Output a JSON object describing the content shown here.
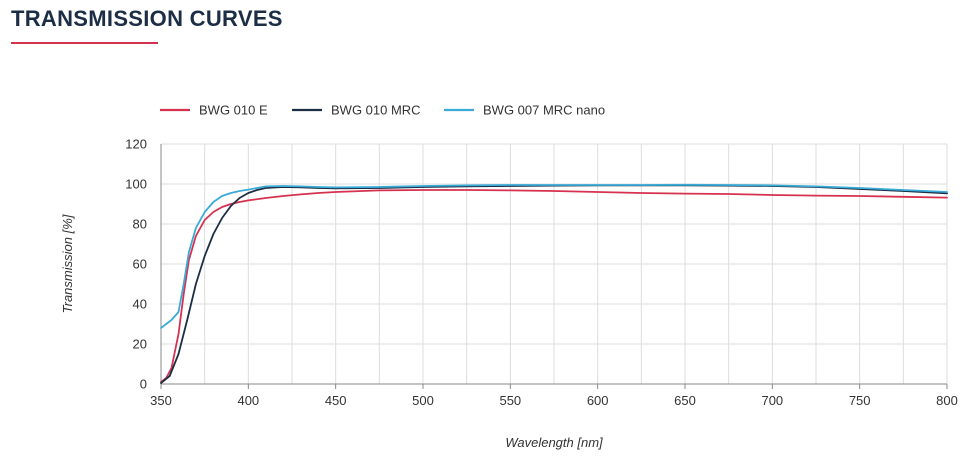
{
  "header": {
    "title": "TRANSMISSION CURVES"
  },
  "colors": {
    "title": "#1c2e45",
    "underline": "#d6324f",
    "grid": "#dddddd",
    "axis": "#888888"
  },
  "chart_data": {
    "type": "line",
    "title": "",
    "xlabel": "Wavelength [nm]",
    "ylabel": "Transmission [%]",
    "xlim": [
      350,
      800
    ],
    "ylim": [
      0,
      120
    ],
    "x_ticks": [
      350,
      400,
      450,
      500,
      550,
      600,
      650,
      700,
      750,
      800
    ],
    "y_ticks": [
      0,
      20,
      40,
      60,
      80,
      100,
      120
    ],
    "x_minor_step": 25,
    "grid": true,
    "legend_position": "top-left",
    "series": [
      {
        "name": "BWG 010 E",
        "color": "#d6324f",
        "points": [
          [
            350,
            1
          ],
          [
            353,
            3
          ],
          [
            356,
            8
          ],
          [
            360,
            25
          ],
          [
            363,
            45
          ],
          [
            366,
            62
          ],
          [
            370,
            74
          ],
          [
            375,
            82
          ],
          [
            380,
            86
          ],
          [
            385,
            88.5
          ],
          [
            390,
            90
          ],
          [
            395,
            91
          ],
          [
            400,
            91.8
          ],
          [
            410,
            93
          ],
          [
            420,
            94
          ],
          [
            430,
            94.8
          ],
          [
            440,
            95.5
          ],
          [
            450,
            96
          ],
          [
            475,
            96.8
          ],
          [
            500,
            97
          ],
          [
            525,
            97
          ],
          [
            550,
            96.8
          ],
          [
            575,
            96.5
          ],
          [
            600,
            96
          ],
          [
            625,
            95.5
          ],
          [
            650,
            95.2
          ],
          [
            675,
            95
          ],
          [
            700,
            94.5
          ],
          [
            725,
            94.2
          ],
          [
            750,
            94
          ],
          [
            775,
            93.6
          ],
          [
            800,
            93.2
          ]
        ]
      },
      {
        "name": "BWG 010 MRC",
        "color": "#1c2e45",
        "points": [
          [
            350,
            0.5
          ],
          [
            355,
            4
          ],
          [
            360,
            15
          ],
          [
            365,
            32
          ],
          [
            370,
            50
          ],
          [
            375,
            64
          ],
          [
            380,
            75
          ],
          [
            385,
            83
          ],
          [
            390,
            89
          ],
          [
            395,
            93
          ],
          [
            400,
            95.5
          ],
          [
            405,
            97
          ],
          [
            410,
            98
          ],
          [
            420,
            98.5
          ],
          [
            430,
            98.3
          ],
          [
            440,
            98
          ],
          [
            450,
            97.8
          ],
          [
            475,
            98
          ],
          [
            500,
            98.5
          ],
          [
            525,
            98.8
          ],
          [
            550,
            99
          ],
          [
            575,
            99.2
          ],
          [
            600,
            99.3
          ],
          [
            625,
            99.3
          ],
          [
            650,
            99.3
          ],
          [
            675,
            99.2
          ],
          [
            700,
            99
          ],
          [
            725,
            98.5
          ],
          [
            750,
            97.5
          ],
          [
            775,
            96.5
          ],
          [
            800,
            95.3
          ]
        ]
      },
      {
        "name": "BWG 007 MRC nano",
        "color": "#3aaad6",
        "points": [
          [
            350,
            28
          ],
          [
            353,
            30
          ],
          [
            356,
            32
          ],
          [
            360,
            36
          ],
          [
            363,
            50
          ],
          [
            366,
            66
          ],
          [
            370,
            78
          ],
          [
            375,
            86
          ],
          [
            380,
            91
          ],
          [
            385,
            94
          ],
          [
            390,
            95.5
          ],
          [
            395,
            96.5
          ],
          [
            400,
            97.2
          ],
          [
            410,
            98.8
          ],
          [
            420,
            99
          ],
          [
            430,
            98.8
          ],
          [
            440,
            98.5
          ],
          [
            450,
            98.3
          ],
          [
            475,
            98.5
          ],
          [
            500,
            99
          ],
          [
            525,
            99.3
          ],
          [
            550,
            99.5
          ],
          [
            575,
            99.5
          ],
          [
            600,
            99.5
          ],
          [
            625,
            99.5
          ],
          [
            650,
            99.6
          ],
          [
            675,
            99.5
          ],
          [
            700,
            99.3
          ],
          [
            725,
            98.8
          ],
          [
            750,
            98
          ],
          [
            775,
            97
          ],
          [
            800,
            96
          ]
        ]
      }
    ]
  }
}
